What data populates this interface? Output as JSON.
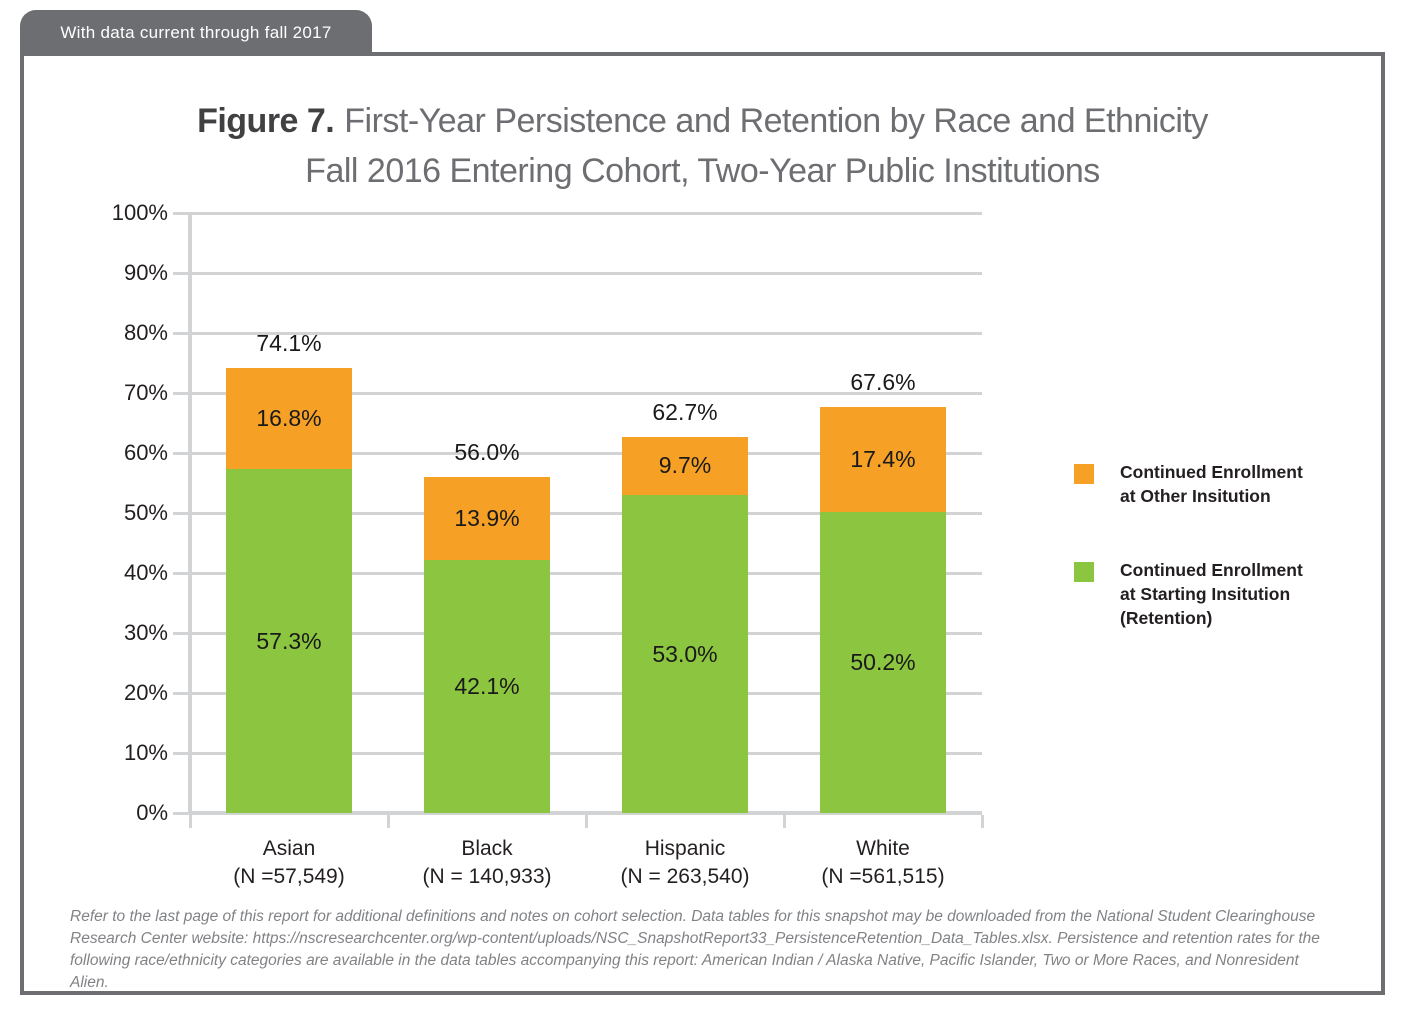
{
  "header": {
    "tab_label": "With data current through fall 2017"
  },
  "title": {
    "prefix": "Figure 7.",
    "line1": "First-Year Persistence and Retention by Race and Ethnicity",
    "line2": "Fall 2016 Entering Cohort, Two-Year Public Institutions"
  },
  "colors": {
    "orange": "#F6A125",
    "green": "#8CC540",
    "grid": "#D1D3D4",
    "tab_gray": "#6D6E71",
    "frame_gray": "#6D6E71",
    "text_dark": "#231F20",
    "footnote_gray": "#808285"
  },
  "chart_data": {
    "type": "bar",
    "stacked": true,
    "title": "Figure 7. First-Year Persistence and Retention by Race and Ethnicity — Fall 2016 Entering Cohort, Two-Year Public Institutions",
    "categories": [
      "Asian",
      "Black",
      "Hispanic",
      "White"
    ],
    "category_sublabels": [
      "(N =57,549)",
      "(N = 140,933)",
      "(N = 263,540)",
      "(N =561,515)"
    ],
    "series": [
      {
        "name": "Continued Enrollment at Starting Insitution (Retention)",
        "color": "#8CC540",
        "values": [
          57.3,
          42.1,
          53.0,
          50.2
        ],
        "labels": [
          "57.3%",
          "42.1%",
          "53.0%",
          "50.2%"
        ]
      },
      {
        "name": "Continued Enrollment at Other Insitution",
        "color": "#F6A125",
        "values": [
          16.8,
          13.9,
          9.7,
          17.4
        ],
        "labels": [
          "16.8%",
          "13.9%",
          "9.7%",
          "17.4%"
        ]
      }
    ],
    "totals": [
      74.1,
      56.0,
      62.7,
      67.6
    ],
    "total_labels": [
      "74.1%",
      "56.0%",
      "62.7%",
      "67.6%"
    ],
    "xlabel": "",
    "ylabel": "",
    "ylim": [
      0,
      100
    ],
    "ytick_step": 10,
    "ytick_labels": [
      "0%",
      "10%",
      "20%",
      "30%",
      "40%",
      "50%",
      "60%",
      "70%",
      "80%",
      "90%",
      "100%"
    ],
    "grid": true,
    "legend_position": "right"
  },
  "legend": {
    "items": [
      {
        "color": "#F6A125",
        "lines": [
          "Continued Enrollment",
          "at Other Insitution"
        ]
      },
      {
        "color": "#8CC540",
        "lines": [
          "Continued Enrollment",
          "at Starting Insitution",
          "(Retention)"
        ]
      }
    ]
  },
  "footnote": {
    "text": "Refer to the last page of this report for additional definitions and notes on cohort selection. Data tables for this snapshot may be downloaded from the National Student Clearinghouse Research Center website: https://nscresearchcenter.org/wp-content/uploads/NSC_SnapshotReport33_PersistenceRetention_Data_Tables.xlsx. Persistence and retention rates for the following race/ethnicity categories are available in the data tables accompanying this report: American Indian / Alaska Native, Pacific Islander, Two or More Races, and Nonresident Alien."
  }
}
